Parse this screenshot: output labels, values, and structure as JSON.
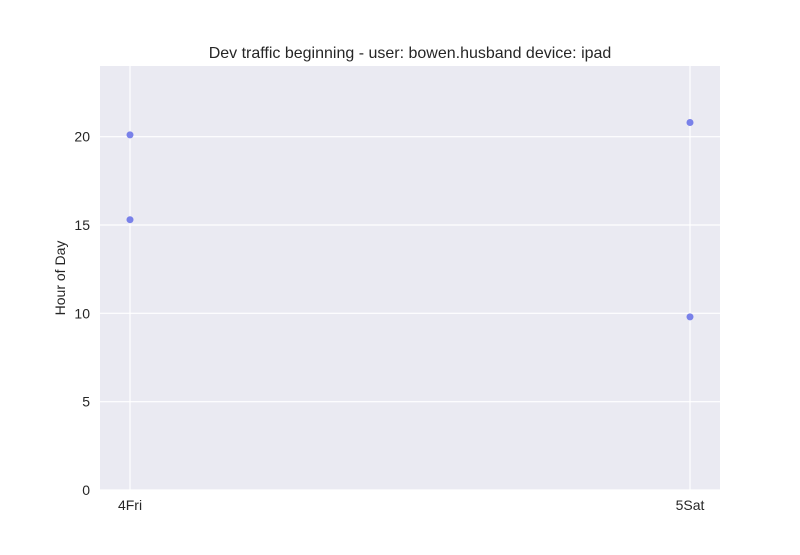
{
  "chart_data": {
    "type": "scatter",
    "title": "Dev traffic beginning - user: bowen.husband device: ipad",
    "xlabel": "",
    "ylabel": "Hour of Day",
    "categories": [
      "4Fri",
      "5Sat"
    ],
    "ylim": [
      0,
      24
    ],
    "yticks": [
      0,
      5,
      10,
      15,
      20
    ],
    "grid": true,
    "points": [
      {
        "x": "4Fri",
        "y": 20.1
      },
      {
        "x": "4Fri",
        "y": 15.3
      },
      {
        "x": "5Sat",
        "y": 20.8
      },
      {
        "x": "5Sat",
        "y": 9.8
      }
    ],
    "colors": {
      "background": "#eaeaf2",
      "grid": "#ffffff",
      "point": "#6b74e8"
    }
  }
}
